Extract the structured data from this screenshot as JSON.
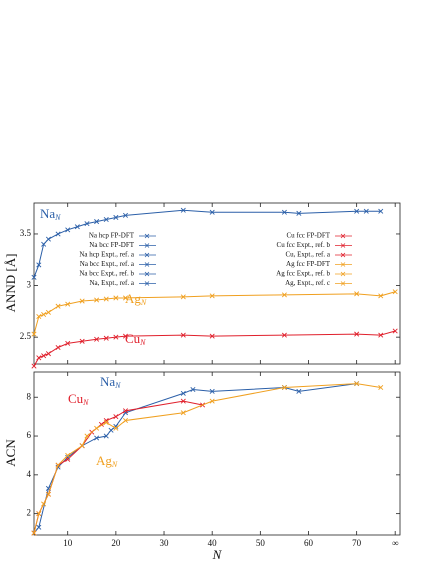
{
  "chart_data": [
    {
      "type": "line",
      "ylabel": "ANND [Å]",
      "xlim": [
        3,
        79
      ],
      "ylim": [
        2.24,
        3.8
      ],
      "yticks": [
        2.5,
        3,
        3.5
      ],
      "legend": [
        {
          "label": "Na hcp FP-DFT",
          "color": "#2b5fa8"
        },
        {
          "label": "Na bcc FP-DFT",
          "color": "#2b5fa8"
        },
        {
          "label": "Na hcp Expt., ref. a",
          "color": "#2b5fa8"
        },
        {
          "label": "Na bcc Expt., ref. a",
          "color": "#2b5fa8"
        },
        {
          "label": "Na bcc Expt., ref. b",
          "color": "#2b5fa8"
        },
        {
          "label": "Na, Expt., ref. a",
          "color": "#2b5fa8"
        },
        {
          "label": "Cu fcc FP-DFT",
          "color": "#e0202c"
        },
        {
          "label": "Cu fcc Expt., ref. b",
          "color": "#e0202c"
        },
        {
          "label": "Cu, Expt., ref. a",
          "color": "#e0202c"
        },
        {
          "label": "Ag fcc FP-DFT",
          "color": "#f0a020"
        },
        {
          "label": "Ag fcc Expt., ref. b",
          "color": "#f0a020"
        },
        {
          "label": "Ag, Expt., ref. c",
          "color": "#f0a020"
        }
      ],
      "series": [
        {
          "name": "Na",
          "sub": "N",
          "color": "#2b5fa8",
          "x": [
            3,
            4,
            5,
            6,
            8,
            10,
            12,
            14,
            16,
            18,
            20,
            22,
            34,
            40,
            55,
            58,
            70,
            72,
            75
          ],
          "values": [
            3.08,
            3.2,
            3.4,
            3.45,
            3.5,
            3.54,
            3.57,
            3.6,
            3.62,
            3.64,
            3.66,
            3.68,
            3.73,
            3.71,
            3.71,
            3.7,
            3.72,
            3.72,
            3.72
          ]
        },
        {
          "name": "Ag",
          "sub": "N",
          "color": "#f0a020",
          "x": [
            3,
            4,
            5,
            6,
            8,
            10,
            13,
            16,
            18,
            20,
            22,
            34,
            40,
            55,
            70,
            75,
            78
          ],
          "values": [
            2.53,
            2.7,
            2.72,
            2.74,
            2.8,
            2.82,
            2.85,
            2.86,
            2.87,
            2.88,
            2.88,
            2.89,
            2.9,
            2.91,
            2.92,
            2.9,
            2.94
          ]
        },
        {
          "name": "Cu",
          "sub": "N",
          "color": "#e0202c",
          "x": [
            3,
            4,
            5,
            6,
            8,
            10,
            13,
            16,
            18,
            20,
            22,
            34,
            40,
            55,
            70,
            75,
            78
          ],
          "values": [
            2.22,
            2.3,
            2.32,
            2.34,
            2.4,
            2.44,
            2.46,
            2.48,
            2.49,
            2.5,
            2.51,
            2.52,
            2.51,
            2.52,
            2.53,
            2.52,
            2.56
          ]
        }
      ]
    },
    {
      "type": "line",
      "ylabel": "ACN",
      "xlabel": "N",
      "xlim": [
        3,
        79
      ],
      "ylim": [
        0.9,
        9.3
      ],
      "yticks": [
        2,
        4,
        6,
        8
      ],
      "xticks": [
        10,
        20,
        30,
        40,
        50,
        60,
        70,
        {
          "value": 78,
          "label": "∞"
        }
      ],
      "series": [
        {
          "name": "Na",
          "sub": "N",
          "color": "#2b5fa8",
          "x": [
            3,
            4,
            6,
            8,
            10,
            13,
            16,
            18,
            19,
            20,
            22,
            34,
            36,
            40,
            55,
            58,
            70
          ],
          "values": [
            1,
            1.3,
            3.3,
            4.4,
            4.9,
            5.5,
            5.9,
            6,
            6.3,
            6.5,
            7.2,
            8.2,
            8.4,
            8.3,
            8.5,
            8.3,
            8.7
          ]
        },
        {
          "name": "Cu",
          "sub": "N",
          "color": "#e0202c",
          "x": [
            3,
            4,
            6,
            8,
            10,
            13,
            15,
            17,
            18,
            20,
            22,
            34,
            38
          ],
          "values": [
            1,
            2,
            3,
            4.5,
            4.8,
            5.5,
            6.2,
            6.6,
            6.8,
            7,
            7.3,
            7.8,
            7.6
          ]
        },
        {
          "name": "Ag",
          "sub": "N",
          "color": "#f0a020",
          "x": [
            3,
            4,
            5,
            6,
            8,
            10,
            13,
            14,
            16,
            18,
            20,
            22,
            34,
            40,
            55,
            70,
            75
          ],
          "values": [
            1,
            2,
            2.5,
            3,
            4.5,
            5,
            5.5,
            6,
            6.4,
            6.7,
            6.4,
            6.8,
            7.2,
            7.8,
            8.5,
            8.7,
            8.5
          ]
        }
      ]
    }
  ]
}
